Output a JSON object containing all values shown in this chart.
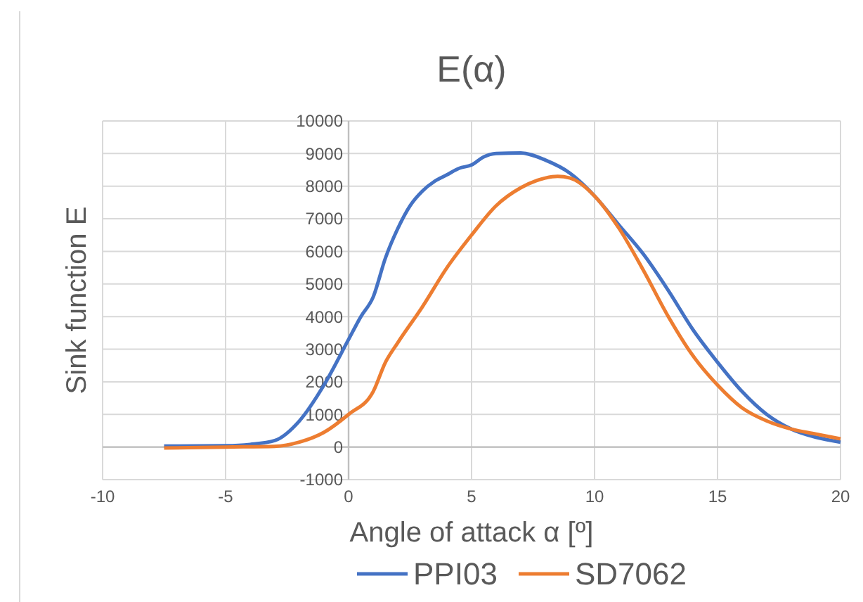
{
  "chart_data": {
    "type": "line",
    "title": "E(α)",
    "xlabel": "Angle of attack α [º]",
    "ylabel": "Sink function E",
    "xlim": [
      -10,
      20
    ],
    "xticks": [
      -10,
      -5,
      0,
      5,
      10,
      15,
      20
    ],
    "ylim": [
      -1000,
      10000
    ],
    "yticks": [
      -1000,
      0,
      1000,
      2000,
      3000,
      4000,
      5000,
      6000,
      7000,
      8000,
      9000,
      10000
    ],
    "grid": true,
    "legend": "bottom",
    "marker": "none",
    "line_style": "solid",
    "series": [
      {
        "name": "PPI03",
        "color": "#4472c4",
        "x": [
          -7.5,
          -5,
          -4,
          -3,
          -2,
          -1,
          0,
          0.5,
          1,
          1.5,
          2,
          2.5,
          3,
          3.5,
          4,
          4.5,
          5,
          5.5,
          6,
          7,
          8,
          9,
          10,
          11,
          12,
          13,
          14,
          15,
          16,
          17,
          18,
          19,
          20
        ],
        "values": [
          30,
          40,
          80,
          200,
          800,
          1900,
          3300,
          4000,
          4600,
          5800,
          6700,
          7400,
          7850,
          8150,
          8350,
          8550,
          8650,
          8900,
          9000,
          9020,
          8800,
          8400,
          7700,
          6800,
          5900,
          4800,
          3600,
          2600,
          1700,
          1000,
          550,
          300,
          150
        ]
      },
      {
        "name": "SD7062",
        "color": "#ed7d31",
        "x": [
          -7.5,
          -5,
          -3,
          -2,
          -1,
          0,
          1,
          1.5,
          2,
          3,
          4,
          5,
          6,
          7,
          8,
          8.5,
          9,
          10,
          11,
          12,
          13,
          14,
          15,
          16,
          17,
          18,
          19,
          20
        ],
        "values": [
          -30,
          0,
          20,
          150,
          450,
          1000,
          1700,
          2600,
          3200,
          4300,
          5500,
          6500,
          7400,
          7950,
          8250,
          8300,
          8250,
          7700,
          6700,
          5400,
          4000,
          2800,
          1900,
          1200,
          800,
          550,
          400,
          250
        ]
      }
    ]
  }
}
